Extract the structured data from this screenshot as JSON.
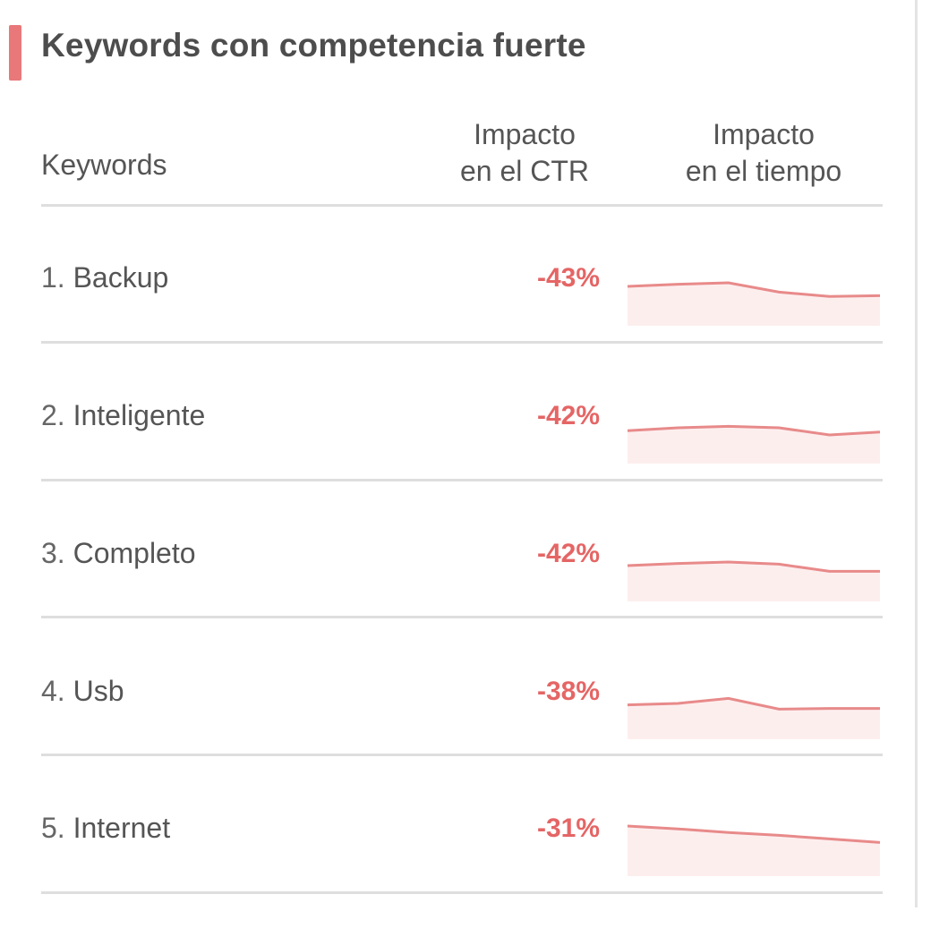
{
  "panel": {
    "title": "Keywords con competencia fuerte",
    "accent_color": "#e8787a"
  },
  "table": {
    "headers": {
      "keywords": "Keywords",
      "ctr_line1": "Impacto",
      "ctr_line2": "en el CTR",
      "time_line1": "Impacto",
      "time_line2": "en el tiempo"
    },
    "rows": [
      {
        "rank": "1.",
        "keyword": "Backup",
        "ctr_impact": "-43%",
        "trend": [
          0.55,
          0.58,
          0.6,
          0.47,
          0.41,
          0.42
        ]
      },
      {
        "rank": "2.",
        "keyword": "Inteligente",
        "ctr_impact": "-42%",
        "trend": [
          0.46,
          0.5,
          0.52,
          0.5,
          0.4,
          0.44
        ]
      },
      {
        "rank": "3.",
        "keyword": "Completo",
        "ctr_impact": "-42%",
        "trend": [
          0.5,
          0.53,
          0.55,
          0.52,
          0.42,
          0.42
        ]
      },
      {
        "rank": "4.",
        "keyword": "Usb",
        "ctr_impact": "-38%",
        "trend": [
          0.48,
          0.5,
          0.57,
          0.42,
          0.43,
          0.43
        ]
      },
      {
        "rank": "5.",
        "keyword": "Internet",
        "ctr_impact": "-31%",
        "trend": [
          0.7,
          0.66,
          0.61,
          0.57,
          0.52,
          0.47
        ]
      }
    ]
  },
  "colors": {
    "negative": "#e56565",
    "spark_line": "#e88a8a",
    "spark_fill": "#fdeeee",
    "divider": "#dedede"
  }
}
